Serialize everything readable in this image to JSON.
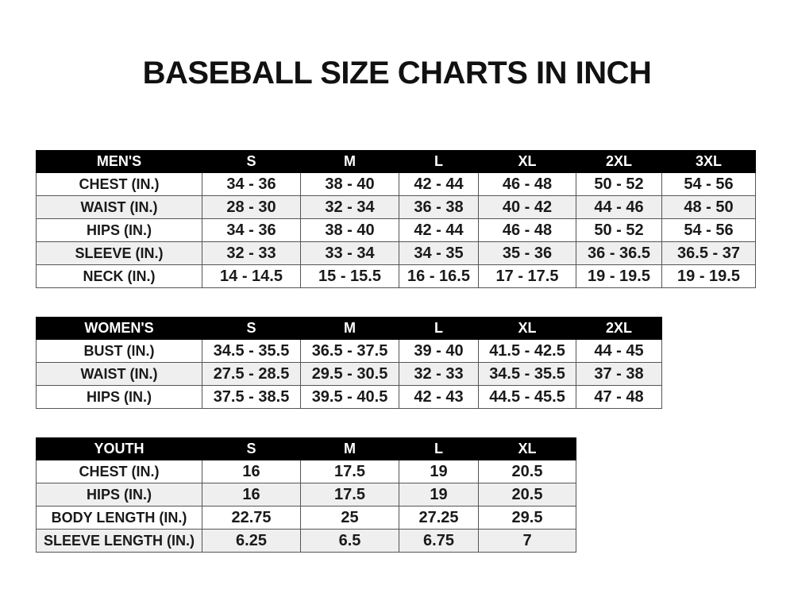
{
  "title": "BASEBALL SIZE CHARTS IN INCH",
  "tables": {
    "men": {
      "header": [
        "MEN'S",
        "S",
        "M",
        "L",
        "XL",
        "2XL",
        "3XL"
      ],
      "rows": [
        [
          "CHEST (IN.)",
          "34 - 36",
          "38 - 40",
          "42 - 44",
          "46 - 48",
          "50 - 52",
          "54 - 56"
        ],
        [
          "WAIST (IN.)",
          "28 - 30",
          "32 - 34",
          "36 - 38",
          "40 - 42",
          "44 - 46",
          "48 - 50"
        ],
        [
          "HIPS (IN.)",
          "34 - 36",
          "38 - 40",
          "42 - 44",
          "46 - 48",
          "50 - 52",
          "54 - 56"
        ],
        [
          "SLEEVE (IN.)",
          "32 - 33",
          "33 - 34",
          "34 - 35",
          "35 - 36",
          "36 - 36.5",
          "36.5 - 37"
        ],
        [
          "NECK (IN.)",
          "14 - 14.5",
          "15 - 15.5",
          "16 - 16.5",
          "17 - 17.5",
          "19 - 19.5",
          "19 - 19.5"
        ]
      ]
    },
    "women": {
      "header": [
        "WOMEN'S",
        "S",
        "M",
        "L",
        "XL",
        "2XL"
      ],
      "rows": [
        [
          "BUST (IN.)",
          "34.5 - 35.5",
          "36.5 - 37.5",
          "39 - 40",
          "41.5 - 42.5",
          "44 - 45"
        ],
        [
          "WAIST (IN.)",
          "27.5 - 28.5",
          "29.5 - 30.5",
          "32 - 33",
          "34.5 - 35.5",
          "37 - 38"
        ],
        [
          "HIPS (IN.)",
          "37.5 - 38.5",
          "39.5 - 40.5",
          "42 - 43",
          "44.5 - 45.5",
          "47 - 48"
        ]
      ]
    },
    "youth": {
      "header": [
        "YOUTH",
        "S",
        "M",
        "L",
        "XL"
      ],
      "rows": [
        [
          "CHEST (IN.)",
          "16",
          "17.5",
          "19",
          "20.5"
        ],
        [
          "HIPS (IN.)",
          "16",
          "17.5",
          "19",
          "20.5"
        ],
        [
          "BODY LENGTH (IN.)",
          "22.75",
          "25",
          "27.25",
          "29.5"
        ],
        [
          "SLEEVE LENGTH (IN.)",
          "6.25",
          "6.5",
          "6.75",
          "7"
        ]
      ]
    }
  }
}
